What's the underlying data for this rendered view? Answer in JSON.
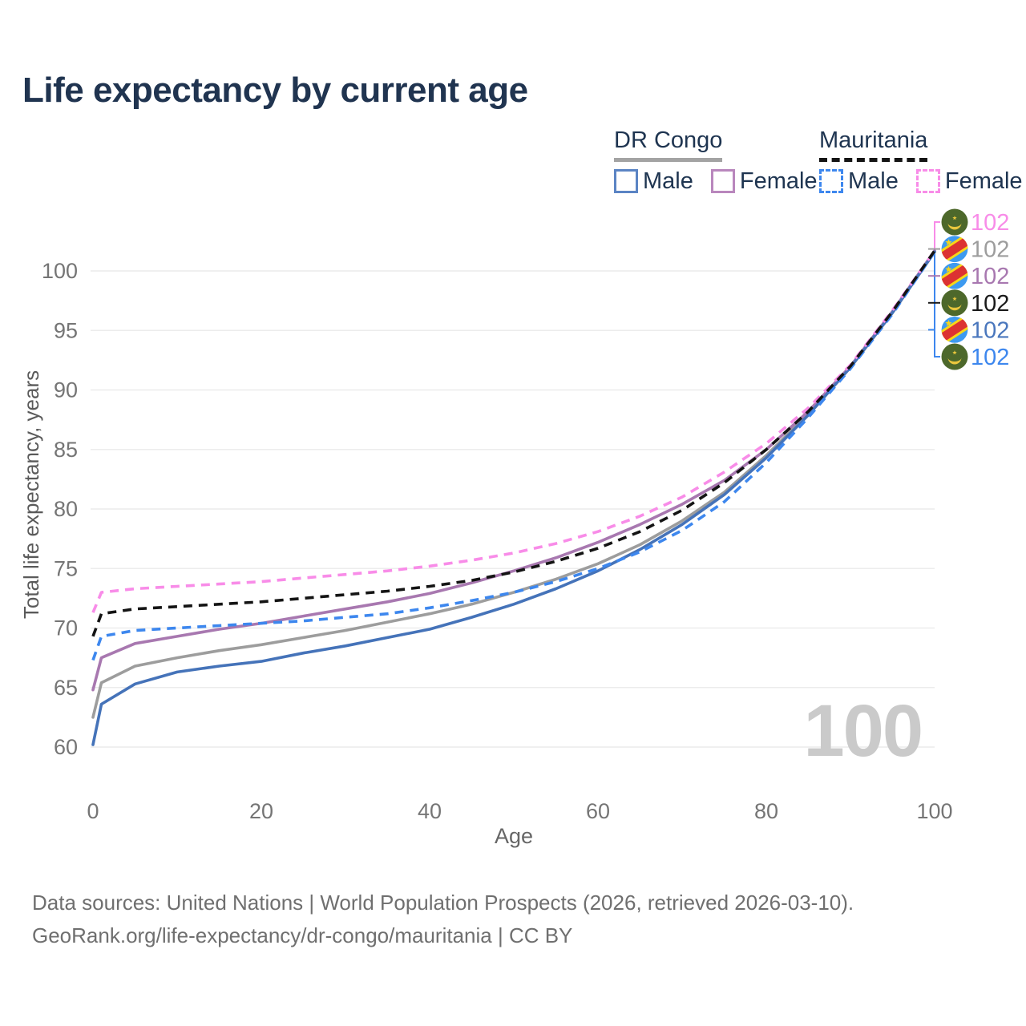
{
  "title": "Life expectancy by current age",
  "legend": {
    "groups": [
      {
        "label": "DR Congo",
        "line_style": "solid",
        "items": [
          {
            "label": "Male",
            "color": "#4573b9"
          },
          {
            "label": "Female",
            "color": "#a878b0"
          }
        ]
      },
      {
        "label": "Mauritania",
        "line_style": "dashed",
        "items": [
          {
            "label": "Male",
            "color": "#3d87ee"
          },
          {
            "label": "Female",
            "color": "#f88ce8"
          }
        ]
      }
    ]
  },
  "watermark": "100",
  "footer": {
    "line1": "Data sources: United Nations | World Population Prospects (2026, retrieved 2026-03-10).",
    "line2": "GeoRank.org/life-expectancy/dr-congo/mauritania | CC BY"
  },
  "chart_data": {
    "type": "line",
    "title": "Life expectancy by current age",
    "xlabel": "Age",
    "ylabel": "Total life expectancy, years",
    "x_ticks": [
      0,
      20,
      40,
      60,
      80,
      100
    ],
    "y_ticks": [
      60,
      65,
      70,
      75,
      80,
      85,
      90,
      95,
      100
    ],
    "xlim": [
      0,
      100
    ],
    "ylim": [
      58,
      103
    ],
    "grid": true,
    "legend_position": "top-right",
    "x": [
      0,
      1,
      5,
      10,
      15,
      20,
      25,
      30,
      35,
      40,
      45,
      50,
      55,
      60,
      65,
      70,
      75,
      80,
      85,
      90,
      95,
      100
    ],
    "series": [
      {
        "name": "DR Congo — Average",
        "country": "DR Congo",
        "sex": "All",
        "color": "#9d9d9d",
        "dashed": false,
        "flag": "cd",
        "end_label": "102",
        "label_color": "#9d9d9d",
        "label_row": 1,
        "values": [
          62.5,
          65.4,
          66.8,
          67.5,
          68.1,
          68.6,
          69.2,
          69.8,
          70.5,
          71.2,
          72.0,
          73.0,
          74.1,
          75.4,
          77.0,
          79.0,
          81.4,
          84.5,
          88.0,
          91.9,
          96.5,
          101.6
        ]
      },
      {
        "name": "DR Congo — Female",
        "country": "DR Congo",
        "sex": "Female",
        "color": "#a878b0",
        "dashed": false,
        "flag": "cd",
        "end_label": "102",
        "label_color": "#a878b0",
        "label_row": 2,
        "values": [
          64.8,
          67.5,
          68.7,
          69.3,
          69.9,
          70.4,
          71.0,
          71.6,
          72.2,
          72.9,
          73.8,
          74.8,
          75.9,
          77.2,
          78.7,
          80.4,
          82.4,
          85.0,
          88.2,
          92.0,
          96.6,
          101.7
        ]
      },
      {
        "name": "DR Congo — Male",
        "country": "DR Congo",
        "sex": "Male",
        "color": "#4573b9",
        "dashed": false,
        "flag": "cd",
        "end_label": "102",
        "label_color": "#4a77bd",
        "label_row": 4,
        "values": [
          60.2,
          63.6,
          65.3,
          66.3,
          66.8,
          67.2,
          67.9,
          68.5,
          69.2,
          69.9,
          70.9,
          72.0,
          73.3,
          74.8,
          76.6,
          78.7,
          81.2,
          84.3,
          87.9,
          91.9,
          96.5,
          101.6
        ]
      },
      {
        "name": "Mauritania — Male",
        "country": "Mauritania",
        "sex": "Male",
        "color": "#3d87ee",
        "dashed": true,
        "flag": "mr",
        "end_label": "102",
        "label_color": "#3d87ee",
        "label_row": 5,
        "values": [
          67.3,
          69.3,
          69.8,
          70.0,
          70.2,
          70.4,
          70.6,
          70.9,
          71.2,
          71.7,
          72.3,
          73.0,
          73.9,
          75.0,
          76.4,
          78.2,
          80.6,
          83.9,
          87.7,
          91.8,
          96.4,
          101.6
        ]
      },
      {
        "name": "Mauritania — Female",
        "country": "Mauritania",
        "sex": "Female",
        "color": "#f88ce8",
        "dashed": true,
        "flag": "mr",
        "end_label": "102",
        "label_color": "#f88ce8",
        "label_row": 0,
        "values": [
          71.3,
          73.0,
          73.3,
          73.5,
          73.7,
          73.9,
          74.2,
          74.5,
          74.8,
          75.2,
          75.7,
          76.3,
          77.1,
          78.1,
          79.4,
          81.0,
          83.1,
          85.5,
          88.5,
          92.1,
          96.7,
          101.7
        ]
      },
      {
        "name": "Mauritania — Average",
        "country": "Mauritania",
        "sex": "All",
        "color": "#141414",
        "dashed": true,
        "flag": "mr",
        "end_label": "102",
        "label_color": "#1a1a1a",
        "label_row": 3,
        "values": [
          69.3,
          71.2,
          71.6,
          71.8,
          72.0,
          72.2,
          72.5,
          72.8,
          73.1,
          73.5,
          74.0,
          74.7,
          75.6,
          76.7,
          78.1,
          79.9,
          82.2,
          85.0,
          88.2,
          92.0,
          96.6,
          101.7
        ]
      }
    ]
  }
}
